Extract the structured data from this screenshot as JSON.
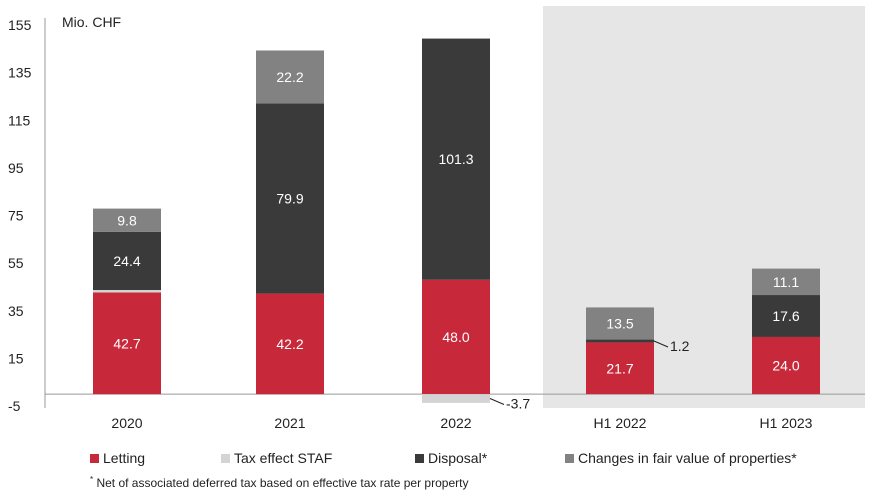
{
  "chart_data": {
    "type": "bar",
    "stacked": true,
    "unit_label": "Mio. CHF",
    "categories": [
      "2020",
      "2021",
      "2022",
      "H1 2022",
      "H1 2023"
    ],
    "y_ticks": [
      "155",
      "135",
      "115",
      "95",
      "75",
      "55",
      "35",
      "15",
      "-5"
    ],
    "ylim": [
      -5,
      155
    ],
    "shaded_categories": [
      "H1 2022",
      "H1 2023"
    ],
    "series": [
      {
        "name": "Letting",
        "color": "#c8293a",
        "values": [
          42.7,
          42.2,
          48.0,
          21.7,
          24.0
        ],
        "labels": [
          "42.7",
          "42.2",
          "48.0",
          "21.7",
          "24.0"
        ]
      },
      {
        "name": "Tax effect STAF",
        "color": "#d4d4d4",
        "values": [
          1.0,
          0,
          -3.7,
          0,
          0
        ],
        "labels": [
          "",
          "",
          "-3.7",
          "",
          ""
        ]
      },
      {
        "name": "Disposal*",
        "color": "#3a3a3a",
        "values": [
          24.4,
          79.9,
          101.3,
          1.2,
          17.6
        ],
        "labels": [
          "24.4",
          "79.9",
          "101.3",
          "1.2",
          "17.6"
        ]
      },
      {
        "name": "Changes in fair value of properties*",
        "color": "#828282",
        "values": [
          9.8,
          22.2,
          0,
          13.5,
          11.1
        ],
        "labels": [
          "9.8",
          "22.2",
          "",
          "13.5",
          "11.1"
        ]
      }
    ],
    "legend_position": "bottom"
  },
  "footnote": {
    "mark": "*",
    "text": " Net of associated deferred tax based on effective tax rate per property"
  }
}
